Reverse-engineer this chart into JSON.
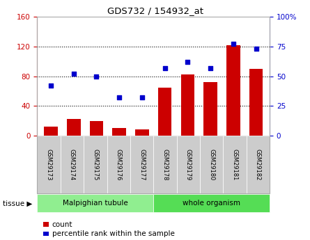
{
  "title": "GDS732 / 154932_at",
  "categories": [
    "GSM29173",
    "GSM29174",
    "GSM29175",
    "GSM29176",
    "GSM29177",
    "GSM29178",
    "GSM29179",
    "GSM29180",
    "GSM29181",
    "GSM29182"
  ],
  "counts": [
    12,
    22,
    20,
    10,
    8,
    65,
    82,
    72,
    122,
    90
  ],
  "percentiles": [
    42,
    52,
    50,
    32,
    32,
    57,
    62,
    57,
    77,
    73
  ],
  "left_ylim": [
    0,
    160
  ],
  "left_yticks": [
    0,
    40,
    80,
    120,
    160
  ],
  "right_ylim": [
    0,
    100
  ],
  "right_yticks": [
    0,
    25,
    50,
    75,
    100
  ],
  "bar_color": "#cc0000",
  "dot_color": "#0000cc",
  "tissue_groups": [
    {
      "label": "Malpighian tubule",
      "start": 0,
      "end": 4,
      "color": "#90ee90"
    },
    {
      "label": "whole organism",
      "start": 5,
      "end": 9,
      "color": "#55dd55"
    }
  ],
  "tissue_label": "tissue",
  "legend_count_label": "count",
  "legend_pct_label": "percentile rank within the sample",
  "tick_bg_color": "#cccccc",
  "left_axis_color": "#cc0000",
  "right_axis_color": "#0000cc",
  "outer_border_color": "#888888"
}
